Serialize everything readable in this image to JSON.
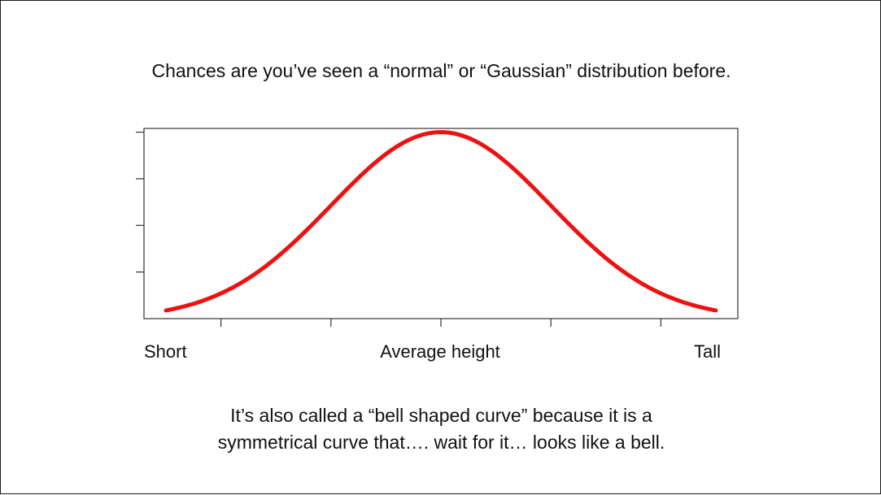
{
  "slide": {
    "headline": "Chances are you’ve seen a “normal” or “Gaussian” distribution before.",
    "caption_line1": "It’s also called a “bell shaped curve” because it is a",
    "caption_line2": "symmetrical curve that…. wait for it… looks like a bell."
  },
  "chart_data": {
    "type": "line",
    "title": "",
    "xlabel": "",
    "ylabel": "",
    "x_tick_labels": {
      "left": "Short",
      "center": "Average height",
      "right": "Tall"
    },
    "x": [
      -2.5,
      -2.25,
      -2.0,
      -1.75,
      -1.5,
      -1.25,
      -1.0,
      -0.75,
      -0.5,
      -0.25,
      0.0,
      0.25,
      0.5,
      0.75,
      1.0,
      1.25,
      1.5,
      1.75,
      2.0,
      2.25,
      2.5
    ],
    "y": [
      0.044,
      0.08,
      0.135,
      0.216,
      0.325,
      0.458,
      0.607,
      0.755,
      0.882,
      0.969,
      1.0,
      0.969,
      0.882,
      0.755,
      0.607,
      0.458,
      0.325,
      0.216,
      0.135,
      0.08,
      0.044
    ],
    "xlim": [
      -2.7,
      2.7
    ],
    "ylim": [
      0,
      1.02
    ],
    "x_ticks": [
      -2.0,
      -1.0,
      0.0,
      1.0,
      2.0
    ],
    "y_ticks": [
      0.25,
      0.5,
      0.75,
      1.0
    ],
    "grid": false,
    "legend": false,
    "series_color": "#ee1111"
  }
}
